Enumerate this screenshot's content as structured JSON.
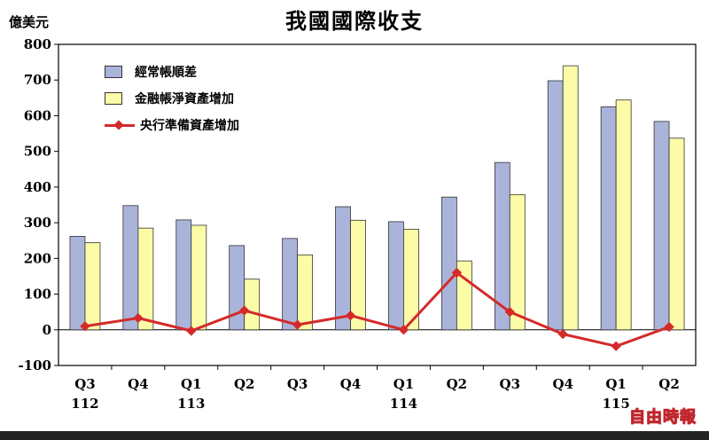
{
  "chart_data": {
    "type": "bar",
    "title": "我國國際收支",
    "ylabel": "億美元",
    "ylim": [
      -100,
      800
    ],
    "yticks": [
      -100,
      0,
      100,
      200,
      300,
      400,
      500,
      600,
      700,
      800
    ],
    "grid": false,
    "legend_position": "top-left",
    "categories": [
      "Q3",
      "Q4",
      "Q1",
      "Q2",
      "Q3",
      "Q4",
      "Q1",
      "Q2",
      "Q3",
      "Q4",
      "Q1",
      "Q2"
    ],
    "year_labels": [
      "112",
      "",
      "113",
      "",
      "",
      "",
      "114",
      "",
      "",
      "",
      "115",
      ""
    ],
    "series": [
      {
        "name": "經常帳順差",
        "type": "bar",
        "color": "#aab4da",
        "values": [
          262,
          348,
          308,
          236,
          256,
          345,
          303,
          372,
          469,
          698,
          625,
          584
        ]
      },
      {
        "name": "金融帳淨資產增加",
        "type": "bar",
        "color": "#fcfca8",
        "values": [
          244,
          285,
          293,
          142,
          210,
          307,
          282,
          193,
          379,
          740,
          644,
          537
        ]
      },
      {
        "name": "央行準備資產增加",
        "type": "line",
        "color": "#d42a2a",
        "values": [
          10,
          33,
          -3,
          54,
          14,
          40,
          0,
          160,
          50,
          -12,
          -46,
          8
        ]
      }
    ]
  },
  "watermark": "自由時報"
}
